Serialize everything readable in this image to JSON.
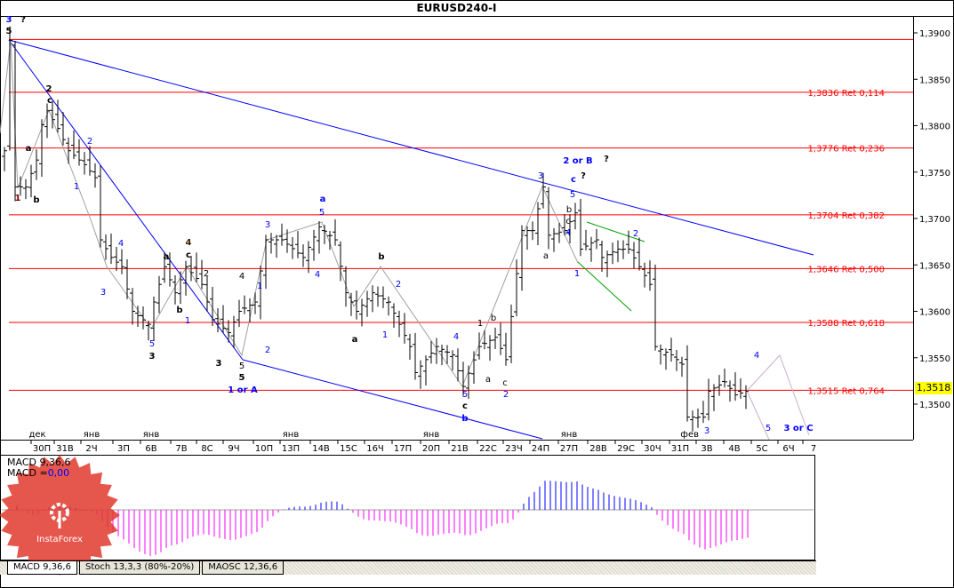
{
  "window": {
    "title": "EURUSD240-I"
  },
  "current_price": "1,3518",
  "indicator_header": {
    "name": "MACD 9,36,6",
    "value_label": "MACD =",
    "value": "0,00"
  },
  "tabs": [
    {
      "label": "MACD 9,36,6",
      "active": true
    },
    {
      "label": "Stoch 13,3,3 (80%-20%)",
      "active": false
    },
    {
      "label": "MAOSC 12,36,6",
      "active": false
    }
  ],
  "watermark": {
    "brand": "InstaForex"
  },
  "colors": {
    "fib": "#ff0000",
    "trend": "#0000ff",
    "wave_blue": "#0000ff",
    "macd_pos": "#0000ff",
    "macd_neg": "#ff00ff",
    "badge": "#ffff00"
  },
  "chart_data": {
    "type": "candlestick-ohlc",
    "title": "EURUSD240-I",
    "y_ticks": [
      "1,3900",
      "1,3850",
      "1,3800",
      "1,3750",
      "1,3700",
      "1,3650",
      "1,3600",
      "1,3550",
      "1,3500"
    ],
    "y_tick_values": [
      1.39,
      1.385,
      1.38,
      1.375,
      1.37,
      1.365,
      1.36,
      1.355,
      1.35
    ],
    "ylim": [
      1.3455,
      1.3918
    ],
    "x_ticks": [
      "30П",
      "31В",
      "2Ч",
      "3П",
      "6В",
      "7В",
      "8С",
      "9Ч",
      "10П",
      "13П",
      "14В",
      "15С",
      "16Ч",
      "17П",
      "20П",
      "21В",
      "22С",
      "23Ч",
      "24П",
      "27П",
      "28В",
      "29С",
      "30Ч",
      "31П",
      "3В",
      "4В",
      "5С",
      "6Ч",
      "7"
    ],
    "month_labels": [
      "дек",
      "янв",
      "янв",
      "янв",
      "янв",
      "янв",
      "фев"
    ],
    "fib_levels": [
      {
        "price": 1.3836,
        "label": "1,3836 Ret 0,114"
      },
      {
        "price": 1.3776,
        "label": "1,3776 Ret 0,236"
      },
      {
        "price": 1.3704,
        "label": "1,3704 Ret 0,382"
      },
      {
        "price": 1.3646,
        "label": "1,3646 Ret 0,500"
      },
      {
        "price": 1.3588,
        "label": "1,3588 Ret 0,618"
      },
      {
        "price": 1.3515,
        "label": "1,3515 Ret 0,764"
      }
    ],
    "fib_top_price": 1.3893,
    "close_path": [
      [
        0,
        1.3773
      ],
      [
        1,
        1.3892
      ],
      [
        2,
        1.3734
      ],
      [
        4,
        1.3734
      ],
      [
        6,
        1.3763
      ],
      [
        7,
        1.3801
      ],
      [
        8,
        1.3816
      ],
      [
        10,
        1.3797
      ],
      [
        12,
        1.3773
      ],
      [
        15,
        1.3758
      ],
      [
        17,
        1.3744
      ],
      [
        18,
        1.3677
      ],
      [
        20,
        1.3658
      ],
      [
        22,
        1.3648
      ],
      [
        24,
        1.36
      ],
      [
        27,
        1.3586
      ],
      [
        28,
        1.361
      ],
      [
        30,
        1.3648
      ],
      [
        32,
        1.362
      ],
      [
        34,
        1.3648
      ],
      [
        37,
        1.3629
      ],
      [
        39,
        1.3591
      ],
      [
        42,
        1.3577
      ],
      [
        44,
        1.36
      ],
      [
        47,
        1.361
      ],
      [
        49,
        1.3677
      ],
      [
        52,
        1.3677
      ],
      [
        56,
        1.3658
      ],
      [
        59,
        1.3691
      ],
      [
        62,
        1.3677
      ],
      [
        64,
        1.362
      ],
      [
        66,
        1.36
      ],
      [
        69,
        1.362
      ],
      [
        72,
        1.361
      ],
      [
        76,
        1.3562
      ],
      [
        77,
        1.3534
      ],
      [
        81,
        1.3562
      ],
      [
        84,
        1.3553
      ],
      [
        86,
        1.3519
      ],
      [
        89,
        1.3562
      ],
      [
        92,
        1.3572
      ],
      [
        94,
        1.3548
      ],
      [
        97,
        1.3687
      ],
      [
        99,
        1.3687
      ],
      [
        101,
        1.3734
      ],
      [
        102,
        1.3682
      ],
      [
        105,
        1.3687
      ],
      [
        107,
        1.3706
      ],
      [
        108,
        1.3667
      ],
      [
        111,
        1.3677
      ],
      [
        112,
        1.3658
      ],
      [
        115,
        1.3667
      ],
      [
        117,
        1.3667
      ],
      [
        119,
        1.3648
      ],
      [
        121,
        1.3629
      ],
      [
        122,
        1.3562
      ],
      [
        125,
        1.3553
      ],
      [
        127,
        1.3543
      ],
      [
        128,
        1.3486
      ],
      [
        131,
        1.3486
      ],
      [
        132,
        1.3514
      ],
      [
        135,
        1.3524
      ],
      [
        137,
        1.351
      ],
      [
        139,
        1.3514
      ]
    ],
    "wave_labels": [
      "3",
      "?",
      "5",
      "2",
      "c",
      "a",
      "1",
      "b",
      "1",
      "2",
      "4",
      "3",
      "a",
      "4",
      "c",
      "2",
      "b",
      "1",
      "5",
      "3",
      "3",
      "4",
      "5",
      "5",
      "1 or A",
      "3",
      "1",
      "2",
      "a",
      "5",
      "4",
      "b",
      "2",
      "a",
      "1",
      "4",
      "1",
      "b",
      "a",
      "c",
      "2",
      "5",
      "c",
      "b",
      "3",
      "2 or B",
      "?",
      "c",
      "?",
      "5",
      "b",
      "c",
      "4",
      "a",
      "1",
      "2",
      "3",
      "4",
      "5",
      "3 or C"
    ]
  }
}
